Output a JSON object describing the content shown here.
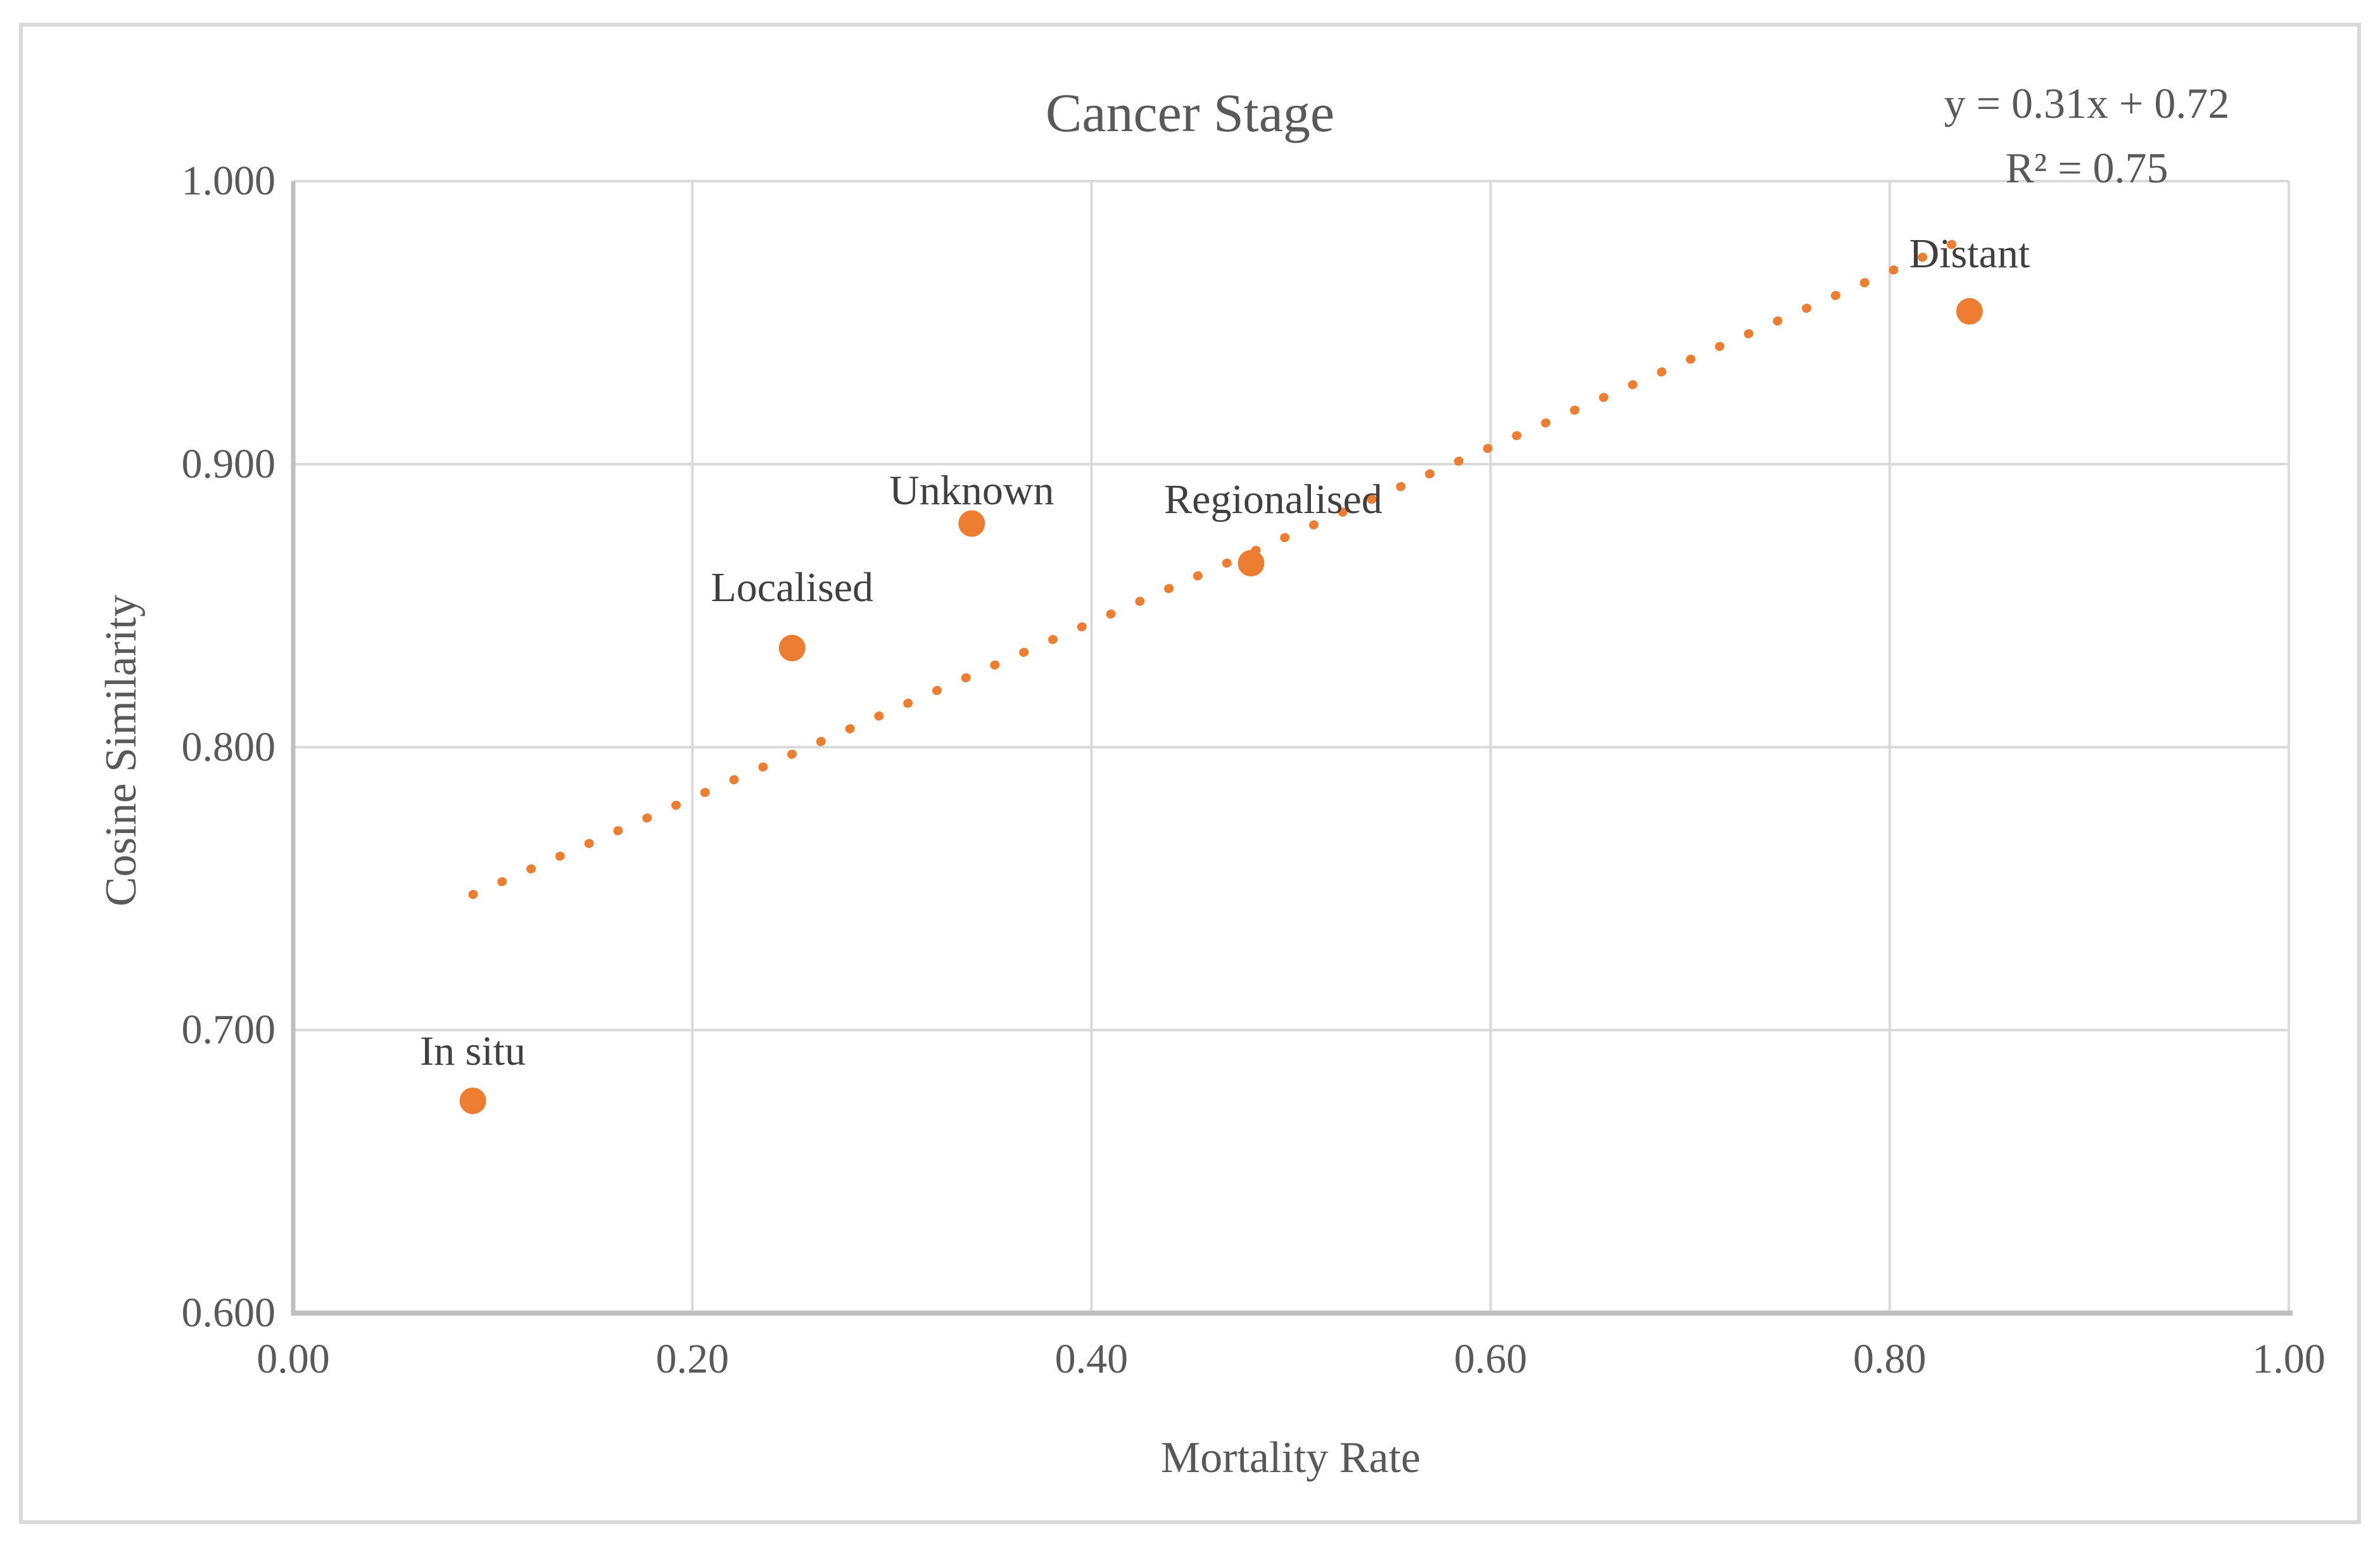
{
  "chart": {
    "title": "Cancer Stage",
    "background_color": "#FFFFFF",
    "border_color": "#D9D9D9",
    "gridline_color": "#D9D9D9",
    "axis_line_color": "#BFBFBF",
    "text_color": "#595959"
  },
  "trendline": {
    "equation": "y = 0.31x + 0.72",
    "r_squared": "R² = 0.75",
    "slope": 0.31,
    "intercept": 0.72,
    "x_start": 0.09,
    "x_end": 0.843,
    "color": "#ED7D31",
    "style": "dotted"
  },
  "axes": {
    "x": {
      "title": "Mortality Rate",
      "min": 0.0,
      "max": 1.0,
      "ticks": [
        {
          "value": 0.0,
          "label": "0.00"
        },
        {
          "value": 0.2,
          "label": "0.20"
        },
        {
          "value": 0.4,
          "label": "0.40"
        },
        {
          "value": 0.6,
          "label": "0.60"
        },
        {
          "value": 0.8,
          "label": "0.80"
        },
        {
          "value": 1.0,
          "label": "1.00"
        }
      ]
    },
    "y": {
      "title": "Cosine Similarity",
      "min": 0.6,
      "max": 1.0,
      "ticks": [
        {
          "value": 0.6,
          "label": "0.600"
        },
        {
          "value": 0.7,
          "label": "0.700"
        },
        {
          "value": 0.8,
          "label": "0.800"
        },
        {
          "value": 0.9,
          "label": "0.900"
        },
        {
          "value": 1.0,
          "label": "1.000"
        }
      ]
    }
  },
  "chart_data": {
    "type": "scatter",
    "title": "Cancer Stage",
    "xlabel": "Mortality Rate",
    "ylabel": "Cosine Similarity",
    "xlim": [
      0.0,
      1.0
    ],
    "ylim": [
      0.6,
      1.0
    ],
    "grid": true,
    "legend": false,
    "point_color": "#ED7D31",
    "points": [
      {
        "label": "In situ",
        "x": 0.09,
        "y": 0.675
      },
      {
        "label": "Localised",
        "x": 0.25,
        "y": 0.835
      },
      {
        "label": "Unknown",
        "x": 0.34,
        "y": 0.879
      },
      {
        "label": "Regionalised",
        "x": 0.48,
        "y": 0.865
      },
      {
        "label": "Distant",
        "x": 0.84,
        "y": 0.954
      }
    ],
    "trendline": {
      "type": "linear",
      "equation": "y = 0.31x + 0.72",
      "r_squared": 0.75,
      "slope": 0.31,
      "intercept": 0.72,
      "x_range": [
        0.09,
        0.843
      ]
    }
  }
}
